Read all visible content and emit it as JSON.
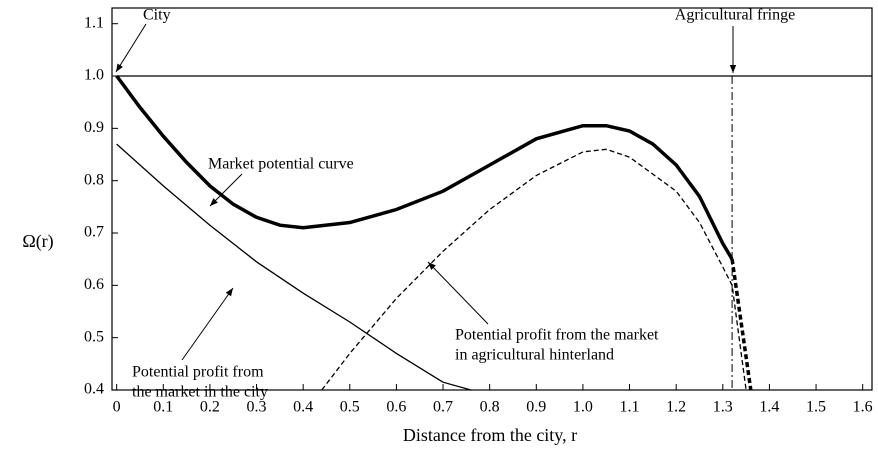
{
  "chart_data": {
    "type": "line",
    "xlabel": "Distance from the city, r",
    "ylabel": "Ω(r)",
    "xlim": [
      -0.01,
      1.62
    ],
    "ylim": [
      0.4,
      1.13
    ],
    "xticks": [
      0,
      0.1,
      0.2,
      0.3,
      0.4,
      0.5,
      0.6,
      0.7,
      0.8,
      0.9,
      {
        "value": 1,
        "label": "1.0"
      },
      1.1,
      1.2,
      1.3,
      1.4,
      1.5,
      1.6
    ],
    "yticks": [
      0.4,
      0.5,
      0.6,
      0.7,
      0.8,
      0.9,
      {
        "value": 1,
        "label": "1.0"
      },
      1.1
    ],
    "grid": false,
    "series": [
      {
        "color": "#000000",
        "style": "solid",
        "width": 1.3,
        "x": [
          0,
          1.62
        ],
        "values": [
          1,
          1
        ]
      },
      {
        "color": "#000000",
        "style": "dashdot",
        "width": 1,
        "x": [
          1.32,
          1.32
        ],
        "values": [
          1,
          0.4
        ]
      },
      {
        "color": "#000000",
        "style": "solid",
        "width": 1.3,
        "x": [
          0,
          0.1,
          0.2,
          0.3,
          0.4,
          0.5,
          0.6,
          0.7,
          0.76
        ],
        "values": [
          0.87,
          0.79,
          0.715,
          0.645,
          0.585,
          0.53,
          0.47,
          0.415,
          0.4
        ]
      },
      {
        "color": "#000000",
        "style": "dashed",
        "width": 1.3,
        "x": [
          0.44,
          0.5,
          0.6,
          0.7,
          0.8,
          0.9,
          1.0,
          1.05,
          1.1,
          1.2,
          1.25,
          1.3,
          1.32,
          1.35
        ],
        "values": [
          0.4,
          0.47,
          0.575,
          0.665,
          0.745,
          0.81,
          0.855,
          0.86,
          0.845,
          0.78,
          0.72,
          0.635,
          0.6,
          0.4
        ]
      },
      {
        "color": "#000000",
        "style": "solid",
        "width": 3.5,
        "x": [
          0,
          0.05,
          0.1,
          0.15,
          0.2,
          0.25,
          0.3,
          0.35,
          0.4,
          0.5,
          0.6,
          0.7,
          0.8,
          0.9,
          1.0,
          1.05,
          1.1,
          1.15,
          1.2,
          1.25,
          1.3,
          1.32
        ],
        "values": [
          1,
          0.94,
          0.885,
          0.835,
          0.79,
          0.755,
          0.73,
          0.715,
          0.71,
          0.72,
          0.745,
          0.78,
          0.83,
          0.88,
          0.905,
          0.905,
          0.895,
          0.87,
          0.83,
          0.77,
          0.68,
          0.65
        ]
      },
      {
        "color": "#000000",
        "style": "dashed",
        "width": 3.5,
        "x": [
          1.32,
          1.36
        ],
        "values": [
          0.65,
          0.4
        ]
      }
    ],
    "annotations": [
      {
        "lines": [
          "City"
        ]
      },
      {
        "lines": [
          "Agricultural fringe"
        ]
      },
      {
        "lines": [
          "Market potential curve"
        ]
      },
      {
        "lines": [
          "Potential profit from",
          "the market in the city"
        ]
      },
      {
        "lines": [
          "Potential profit from the market",
          "in agricultural hinterland"
        ]
      }
    ]
  }
}
